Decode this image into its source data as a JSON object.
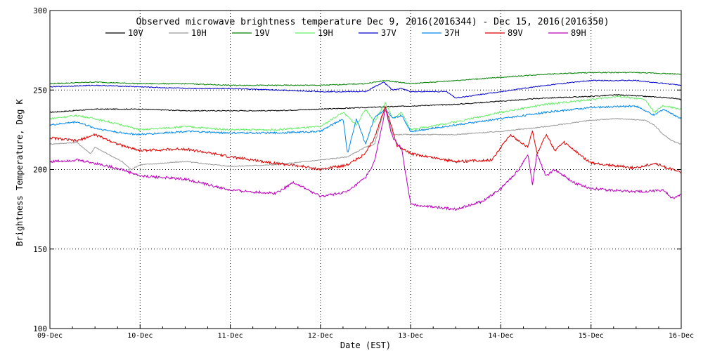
{
  "chart_data": {
    "type": "line",
    "title": "Observed microwave brightness temperature Dec  9, 2016(2016344) - Dec 15, 2016(2016350)",
    "xlabel": "Date (EST)",
    "ylabel": "Brightness Temperature, Deg K",
    "ylim": [
      100,
      300
    ],
    "xlim": [
      0,
      7
    ],
    "y_ticks": [
      "100",
      "150",
      "200",
      "250",
      "300"
    ],
    "y_tick_values": [
      100,
      150,
      200,
      250,
      300
    ],
    "x_ticks": [
      "09-Dec",
      "10-Dec",
      "11-Dec",
      "12-Dec",
      "13-Dec",
      "14-Dec",
      "15-Dec",
      "16-Dec"
    ],
    "x_tick_values": [
      0,
      1,
      2,
      3,
      4,
      5,
      6,
      7
    ],
    "grid": "dotted",
    "legend_position": "top",
    "series": [
      {
        "name": "10V",
        "color": "#000000",
        "x": [
          0,
          0.5,
          1,
          1.5,
          2,
          2.5,
          3,
          3.5,
          4,
          4.5,
          5,
          5.5,
          6,
          6.3,
          6.6,
          6.9,
          7
        ],
        "y": [
          236,
          238,
          238,
          237,
          237,
          237,
          238,
          239,
          240,
          241,
          243,
          245,
          246,
          247,
          246,
          245,
          244
        ]
      },
      {
        "name": "10H",
        "color": "#999999",
        "x": [
          0,
          0.3,
          0.45,
          0.5,
          0.8,
          0.9,
          1,
          1.5,
          2,
          2.5,
          3,
          3.3,
          3.5,
          3.6,
          3.72,
          3.8,
          4,
          4.5,
          5,
          5.5,
          6,
          6.3,
          6.6,
          6.7,
          6.8,
          6.9,
          7
        ],
        "y": [
          216,
          217,
          210,
          214,
          205,
          200,
          203,
          205,
          202,
          203,
          206,
          208,
          214,
          216,
          240,
          222,
          222,
          222,
          224,
          227,
          231,
          232,
          231,
          228,
          222,
          218,
          216
        ]
      },
      {
        "name": "19V",
        "color": "#008000",
        "x": [
          0,
          0.5,
          1,
          1.5,
          2,
          2.5,
          3,
          3.5,
          3.72,
          4,
          4.5,
          5,
          5.5,
          6,
          6.5,
          7
        ],
        "y": [
          254,
          255,
          254,
          254,
          253,
          253,
          253,
          254,
          256,
          254,
          256,
          258,
          260,
          261,
          261,
          260
        ]
      },
      {
        "name": "19H",
        "color": "#66ee66",
        "x": [
          0,
          0.3,
          0.5,
          0.8,
          1,
          1.5,
          2,
          2.5,
          3,
          3.25,
          3.4,
          3.5,
          3.6,
          3.72,
          3.8,
          3.9,
          4,
          4.5,
          5,
          5.5,
          6,
          6.3,
          6.6,
          6.7,
          6.8,
          7
        ],
        "y": [
          232,
          234,
          232,
          228,
          225,
          227,
          225,
          225,
          227,
          236,
          228,
          238,
          230,
          242,
          232,
          236,
          225,
          230,
          236,
          241,
          244,
          246,
          244,
          236,
          240,
          238
        ]
      },
      {
        "name": "37V",
        "color": "#0000cc",
        "x": [
          0,
          0.5,
          1,
          1.5,
          2,
          2.5,
          3,
          3.5,
          3.7,
          3.8,
          3.9,
          4,
          4.4,
          4.5,
          5,
          5.5,
          6,
          6.5,
          7
        ],
        "y": [
          252,
          253,
          252,
          251,
          251,
          250,
          249,
          249,
          255,
          250,
          251,
          249,
          249,
          245,
          249,
          253,
          256,
          256,
          253
        ]
      },
      {
        "name": "37H",
        "color": "#0088ee",
        "x": [
          0,
          0.3,
          0.5,
          0.8,
          1,
          1.5,
          2,
          2.5,
          3,
          3.25,
          3.3,
          3.4,
          3.5,
          3.6,
          3.72,
          3.8,
          3.9,
          4,
          4.5,
          5,
          5.5,
          6,
          6.5,
          6.7,
          6.8,
          7
        ],
        "y": [
          228,
          230,
          226,
          223,
          222,
          224,
          223,
          223,
          224,
          232,
          210,
          232,
          216,
          233,
          238,
          232,
          234,
          224,
          228,
          232,
          236,
          239,
          240,
          234,
          238,
          232
        ]
      },
      {
        "name": "89V",
        "color": "#dd0000",
        "x": [
          0,
          0.3,
          0.5,
          0.8,
          1,
          1.5,
          2,
          2.5,
          2.8,
          3,
          3.3,
          3.5,
          3.6,
          3.72,
          3.85,
          4,
          4.5,
          4.9,
          5.1,
          5.3,
          5.35,
          5.4,
          5.5,
          5.6,
          5.7,
          6,
          6.5,
          6.7,
          6.9,
          7
        ],
        "y": [
          220,
          218,
          222,
          215,
          212,
          213,
          208,
          204,
          202,
          200,
          203,
          210,
          220,
          240,
          215,
          210,
          205,
          206,
          222,
          214,
          225,
          210,
          222,
          212,
          217,
          204,
          201,
          204,
          200,
          198
        ]
      },
      {
        "name": "89H",
        "color": "#bb00bb",
        "x": [
          0,
          0.3,
          0.5,
          0.8,
          1,
          1.5,
          2,
          2.5,
          2.7,
          3,
          3.3,
          3.5,
          3.6,
          3.72,
          3.8,
          3.9,
          4,
          4.5,
          4.8,
          5,
          5.2,
          5.3,
          5.35,
          5.4,
          5.5,
          5.6,
          5.8,
          6,
          6.5,
          6.8,
          6.9,
          7
        ],
        "y": [
          205,
          206,
          204,
          200,
          196,
          194,
          187,
          185,
          192,
          183,
          186,
          195,
          205,
          238,
          220,
          213,
          178,
          175,
          180,
          188,
          200,
          210,
          190,
          210,
          196,
          200,
          192,
          188,
          186,
          187,
          182,
          184
        ]
      }
    ]
  }
}
